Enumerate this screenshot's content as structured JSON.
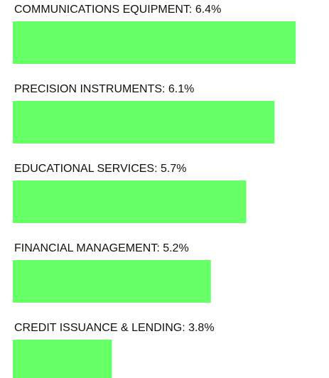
{
  "chart_data": {
    "type": "bar",
    "orientation": "horizontal",
    "categories": [
      "COMMUNICATIONS EQUIPMENT: 6.4%",
      "PRECISION INSTRUMENTS: 6.1%",
      "EDUCATIONAL SERVICES: 5.7%",
      "FINANCIAL MANAGEMENT: 5.2%",
      "CREDIT ISSUANCE & LENDING: 3.8%"
    ],
    "values": [
      6.4,
      6.1,
      5.7,
      5.2,
      3.8
    ],
    "color": "#66ff66",
    "xlim": [
      2.4,
      6.9
    ]
  }
}
